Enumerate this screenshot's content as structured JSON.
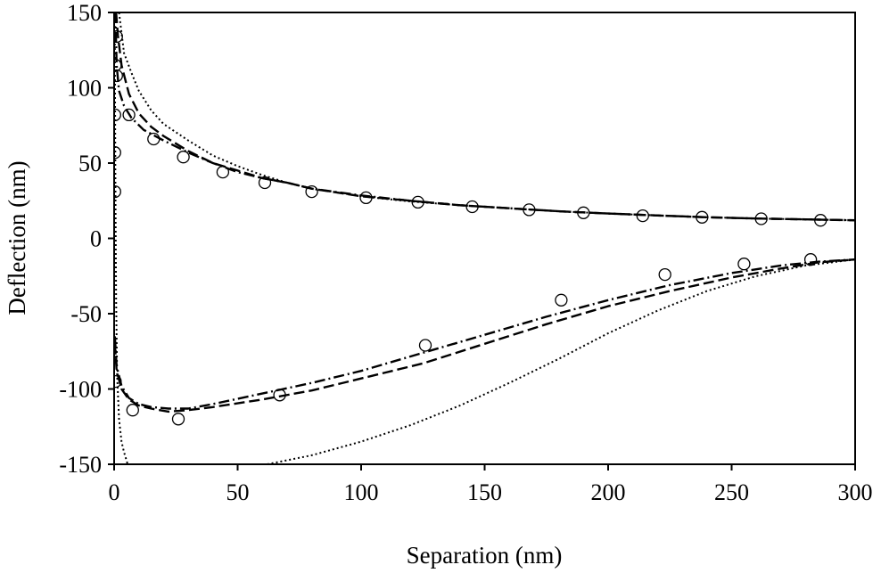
{
  "chart_data": {
    "type": "scatter",
    "xlabel": "Separation (nm)",
    "ylabel": "Deflection (nm)",
    "xlim": [
      0,
      300
    ],
    "ylim": [
      -150,
      150
    ],
    "xticks": [
      0,
      50,
      100,
      150,
      200,
      250,
      300
    ],
    "yticks": [
      -150,
      -100,
      -50,
      0,
      50,
      100,
      150
    ],
    "grid": false,
    "legend": "none",
    "series": [
      {
        "style": "markers-open-circle",
        "points": [
          [
            1,
            134
          ],
          [
            0.5,
            115
          ],
          [
            1,
            108
          ],
          [
            0.3,
            82
          ],
          [
            6,
            82
          ],
          [
            16,
            66
          ],
          [
            28,
            54
          ],
          [
            44,
            44
          ],
          [
            61,
            37
          ],
          [
            80,
            31
          ],
          [
            102,
            27
          ],
          [
            123,
            24
          ],
          [
            145,
            21
          ],
          [
            168,
            19
          ],
          [
            190,
            17
          ],
          [
            214,
            15
          ],
          [
            238,
            14
          ],
          [
            262,
            13
          ],
          [
            286,
            12
          ],
          [
            0.3,
            57
          ],
          [
            0.3,
            31
          ],
          [
            0.5,
            -95
          ],
          [
            7.5,
            -114
          ],
          [
            26,
            -120
          ],
          [
            67,
            -104
          ],
          [
            126,
            -71
          ],
          [
            181,
            -41
          ],
          [
            223,
            -24
          ],
          [
            255,
            -17
          ],
          [
            282,
            -14
          ]
        ]
      },
      {
        "style": "dashed",
        "points": [
          [
            0.8,
            150
          ],
          [
            1.5,
            135
          ],
          [
            3,
            115
          ],
          [
            6,
            96
          ],
          [
            10,
            83
          ],
          [
            15,
            74
          ],
          [
            20,
            68
          ],
          [
            30,
            58
          ],
          [
            40,
            50
          ],
          [
            50,
            45
          ],
          [
            60,
            40
          ],
          [
            70,
            37
          ],
          [
            80,
            33
          ],
          [
            100,
            28
          ],
          [
            120,
            25
          ],
          [
            140,
            22
          ],
          [
            160,
            20
          ],
          [
            180,
            18
          ],
          [
            200,
            16.5
          ],
          [
            220,
            15.2
          ],
          [
            240,
            14
          ],
          [
            260,
            13.2
          ],
          [
            280,
            12.6
          ],
          [
            300,
            12
          ]
        ]
      },
      {
        "style": "dash-dot",
        "points": [
          [
            0.5,
            150
          ],
          [
            1,
            115
          ],
          [
            2,
            98
          ],
          [
            4,
            88
          ],
          [
            7,
            80
          ],
          [
            12,
            72
          ],
          [
            20,
            65
          ],
          [
            30,
            57
          ],
          [
            40,
            50
          ],
          [
            50,
            44
          ],
          [
            60,
            40
          ],
          [
            70,
            37
          ],
          [
            80,
            33
          ],
          [
            100,
            28.5
          ],
          [
            120,
            25
          ],
          [
            140,
            22
          ],
          [
            160,
            20
          ],
          [
            180,
            18
          ],
          [
            200,
            16.5
          ],
          [
            220,
            15.2
          ],
          [
            240,
            14
          ],
          [
            260,
            13.2
          ],
          [
            280,
            12.6
          ],
          [
            300,
            12
          ]
        ]
      },
      {
        "style": "dotted",
        "points": [
          [
            2,
            150
          ],
          [
            4,
            123
          ],
          [
            7,
            110
          ],
          [
            10,
            98
          ],
          [
            15,
            85
          ],
          [
            20,
            76
          ],
          [
            30,
            65
          ],
          [
            40,
            55
          ],
          [
            50,
            48
          ],
          [
            60,
            42
          ],
          [
            70,
            37
          ],
          [
            80,
            33
          ],
          [
            100,
            28
          ],
          [
            120,
            24.5
          ],
          [
            140,
            22
          ],
          [
            160,
            20
          ],
          [
            180,
            18
          ],
          [
            200,
            16.5
          ],
          [
            220,
            15.2
          ],
          [
            240,
            14
          ],
          [
            260,
            13.2
          ],
          [
            280,
            12.6
          ],
          [
            300,
            12
          ]
        ]
      },
      {
        "style": "dashed",
        "points": [
          [
            0.3,
            -70
          ],
          [
            1,
            -88
          ],
          [
            3,
            -100
          ],
          [
            6,
            -107
          ],
          [
            10,
            -111
          ],
          [
            15,
            -113
          ],
          [
            22,
            -115
          ],
          [
            30,
            -114
          ],
          [
            40,
            -112
          ],
          [
            60,
            -107
          ],
          [
            80,
            -101
          ],
          [
            100,
            -93
          ],
          [
            125,
            -83
          ],
          [
            150,
            -70
          ],
          [
            175,
            -57
          ],
          [
            200,
            -45
          ],
          [
            225,
            -35
          ],
          [
            250,
            -26
          ],
          [
            270,
            -20
          ],
          [
            285,
            -16
          ],
          [
            300,
            -14
          ]
        ]
      },
      {
        "style": "dash-dot",
        "points": [
          [
            0.3,
            -65
          ],
          [
            1,
            -85
          ],
          [
            3,
            -98
          ],
          [
            6,
            -106
          ],
          [
            10,
            -110
          ],
          [
            15,
            -112
          ],
          [
            22,
            -113
          ],
          [
            30,
            -113
          ],
          [
            40,
            -110
          ],
          [
            60,
            -103
          ],
          [
            80,
            -96
          ],
          [
            100,
            -88
          ],
          [
            125,
            -76
          ],
          [
            150,
            -64
          ],
          [
            175,
            -52
          ],
          [
            200,
            -41
          ],
          [
            225,
            -31
          ],
          [
            250,
            -23
          ],
          [
            270,
            -18
          ],
          [
            285,
            -15.5
          ],
          [
            300,
            -14
          ]
        ]
      },
      {
        "style": "dotted",
        "points": [
          [
            0.2,
            150
          ],
          [
            0.5,
            40
          ],
          [
            0.8,
            -40
          ],
          [
            1.2,
            -90
          ],
          [
            2,
            -120
          ],
          [
            3,
            -135
          ],
          [
            4,
            -142
          ],
          [
            5.5,
            -150
          ]
        ]
      },
      {
        "style": "dotted",
        "points": [
          [
            62,
            -150
          ],
          [
            80,
            -144
          ],
          [
            100,
            -135
          ],
          [
            120,
            -124
          ],
          [
            140,
            -111
          ],
          [
            160,
            -96
          ],
          [
            180,
            -80
          ],
          [
            200,
            -63
          ],
          [
            220,
            -48
          ],
          [
            240,
            -35
          ],
          [
            260,
            -25
          ],
          [
            280,
            -18
          ],
          [
            300,
            -14
          ]
        ]
      }
    ]
  }
}
